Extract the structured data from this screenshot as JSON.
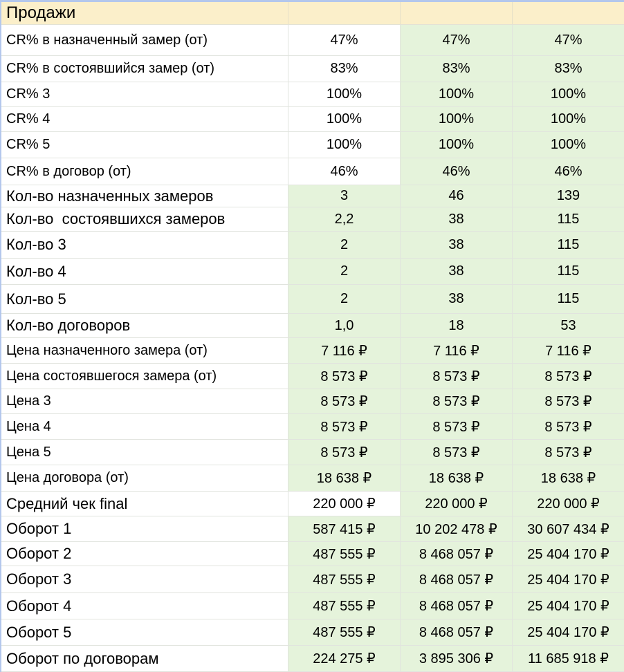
{
  "palette": {
    "header_bg": "#fbefca",
    "cell_green": "#e5f3db",
    "cell_white": "#ffffff",
    "gridline": "#e1e4de",
    "selection_blue": "#b3c7ec",
    "text": "#000000"
  },
  "header": {
    "title": "Продажи",
    "value_column_headers": [
      "",
      "",
      ""
    ]
  },
  "rows": [
    {
      "label": "CR% в назначенный замер (от)",
      "values": [
        "47%",
        "47%",
        "47%"
      ],
      "first_col_white": true
    },
    {
      "label": "CR% в состоявшийся замер (от)",
      "values": [
        "83%",
        "83%",
        "83%"
      ],
      "first_col_white": true
    },
    {
      "label": "CR% 3",
      "values": [
        "100%",
        "100%",
        "100%"
      ],
      "first_col_white": true
    },
    {
      "label": "CR% 4",
      "values": [
        "100%",
        "100%",
        "100%"
      ],
      "first_col_white": true
    },
    {
      "label": "CR% 5",
      "values": [
        "100%",
        "100%",
        "100%"
      ],
      "first_col_white": true
    },
    {
      "label": "CR% в договор (от)",
      "values": [
        "46%",
        "46%",
        "46%"
      ],
      "first_col_white": true
    },
    {
      "label": "Кол-во назначенных замеров",
      "values": [
        "3",
        "46",
        "139"
      ],
      "first_col_white": false
    },
    {
      "label": "Кол-во  состоявшихся замеров",
      "values": [
        "2,2",
        "38",
        "115"
      ],
      "first_col_white": false
    },
    {
      "label": "Кол-во 3",
      "values": [
        "2",
        "38",
        "115"
      ],
      "first_col_white": false
    },
    {
      "label": "Кол-во 4",
      "values": [
        "2",
        "38",
        "115"
      ],
      "first_col_white": false
    },
    {
      "label": "Кол-во 5",
      "values": [
        "2",
        "38",
        "115"
      ],
      "first_col_white": false
    },
    {
      "label": "Кол-во договоров",
      "values": [
        "1,0",
        "18",
        "53"
      ],
      "first_col_white": false
    },
    {
      "label": "Цена назначенного замера (от)",
      "values": [
        "7 116 ₽",
        "7 116 ₽",
        "7 116 ₽"
      ],
      "first_col_white": false
    },
    {
      "label": "Цена состоявшегося замера (от)",
      "values": [
        "8 573 ₽",
        "8 573 ₽",
        "8 573 ₽"
      ],
      "first_col_white": false
    },
    {
      "label": "Цена 3",
      "values": [
        "8 573 ₽",
        "8 573 ₽",
        "8 573 ₽"
      ],
      "first_col_white": false
    },
    {
      "label": "Цена 4",
      "values": [
        "8 573 ₽",
        "8 573 ₽",
        "8 573 ₽"
      ],
      "first_col_white": false
    },
    {
      "label": "Цена 5",
      "values": [
        "8 573 ₽",
        "8 573 ₽",
        "8 573 ₽"
      ],
      "first_col_white": false
    },
    {
      "label": "Цена договора (от)",
      "values": [
        "18 638 ₽",
        "18 638 ₽",
        "18 638 ₽"
      ],
      "first_col_white": false
    },
    {
      "label": "Средний чек final",
      "values": [
        "220 000 ₽",
        "220 000 ₽",
        "220 000 ₽"
      ],
      "first_col_white": true
    },
    {
      "label": "Оборот 1",
      "values": [
        "587 415 ₽",
        "10 202 478 ₽",
        "30 607 434 ₽"
      ],
      "first_col_white": false
    },
    {
      "label": "Оборот 2",
      "values": [
        "487 555 ₽",
        "8 468 057 ₽",
        "25 404 170 ₽"
      ],
      "first_col_white": false
    },
    {
      "label": "Оборот 3",
      "values": [
        "487 555 ₽",
        "8 468 057 ₽",
        "25 404 170 ₽"
      ],
      "first_col_white": false
    },
    {
      "label": "Оборот 4",
      "values": [
        "487 555 ₽",
        "8 468 057 ₽",
        "25 404 170 ₽"
      ],
      "first_col_white": false
    },
    {
      "label": "Оборот 5",
      "values": [
        "487 555 ₽",
        "8 468 057 ₽",
        "25 404 170 ₽"
      ],
      "first_col_white": false
    },
    {
      "label": "Оборот по договорам",
      "values": [
        "224 275 ₽",
        "3 895 306 ₽",
        "11 685 918 ₽"
      ],
      "first_col_white": false
    }
  ]
}
